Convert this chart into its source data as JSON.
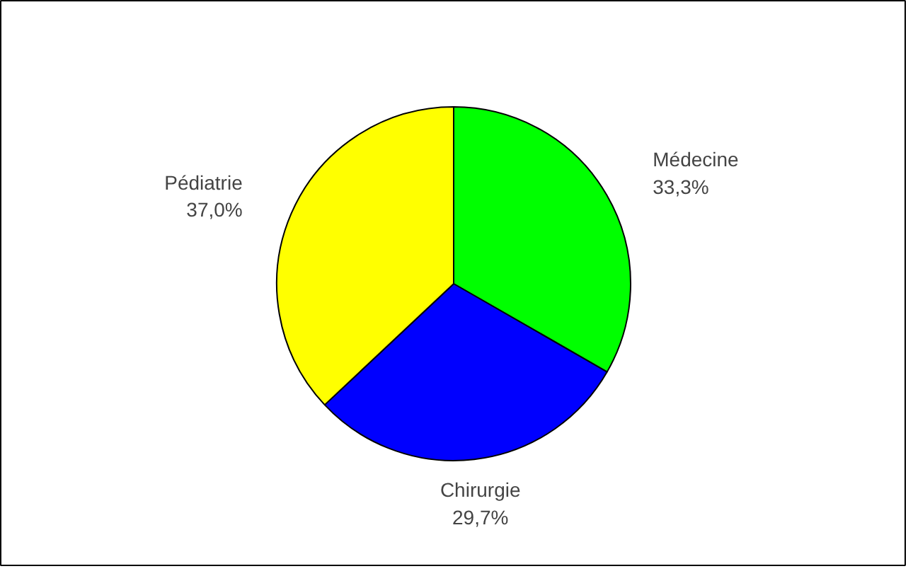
{
  "chart_data": {
    "type": "pie",
    "categories": [
      "Médecine",
      "Chirurgie",
      "Pédiatrie"
    ],
    "values": [
      33.3,
      29.7,
      37.0
    ],
    "colors": [
      "#00ff00",
      "#0000ff",
      "#ffff00"
    ],
    "value_labels": [
      "33,3%",
      "29,7%",
      "37,0%"
    ]
  }
}
